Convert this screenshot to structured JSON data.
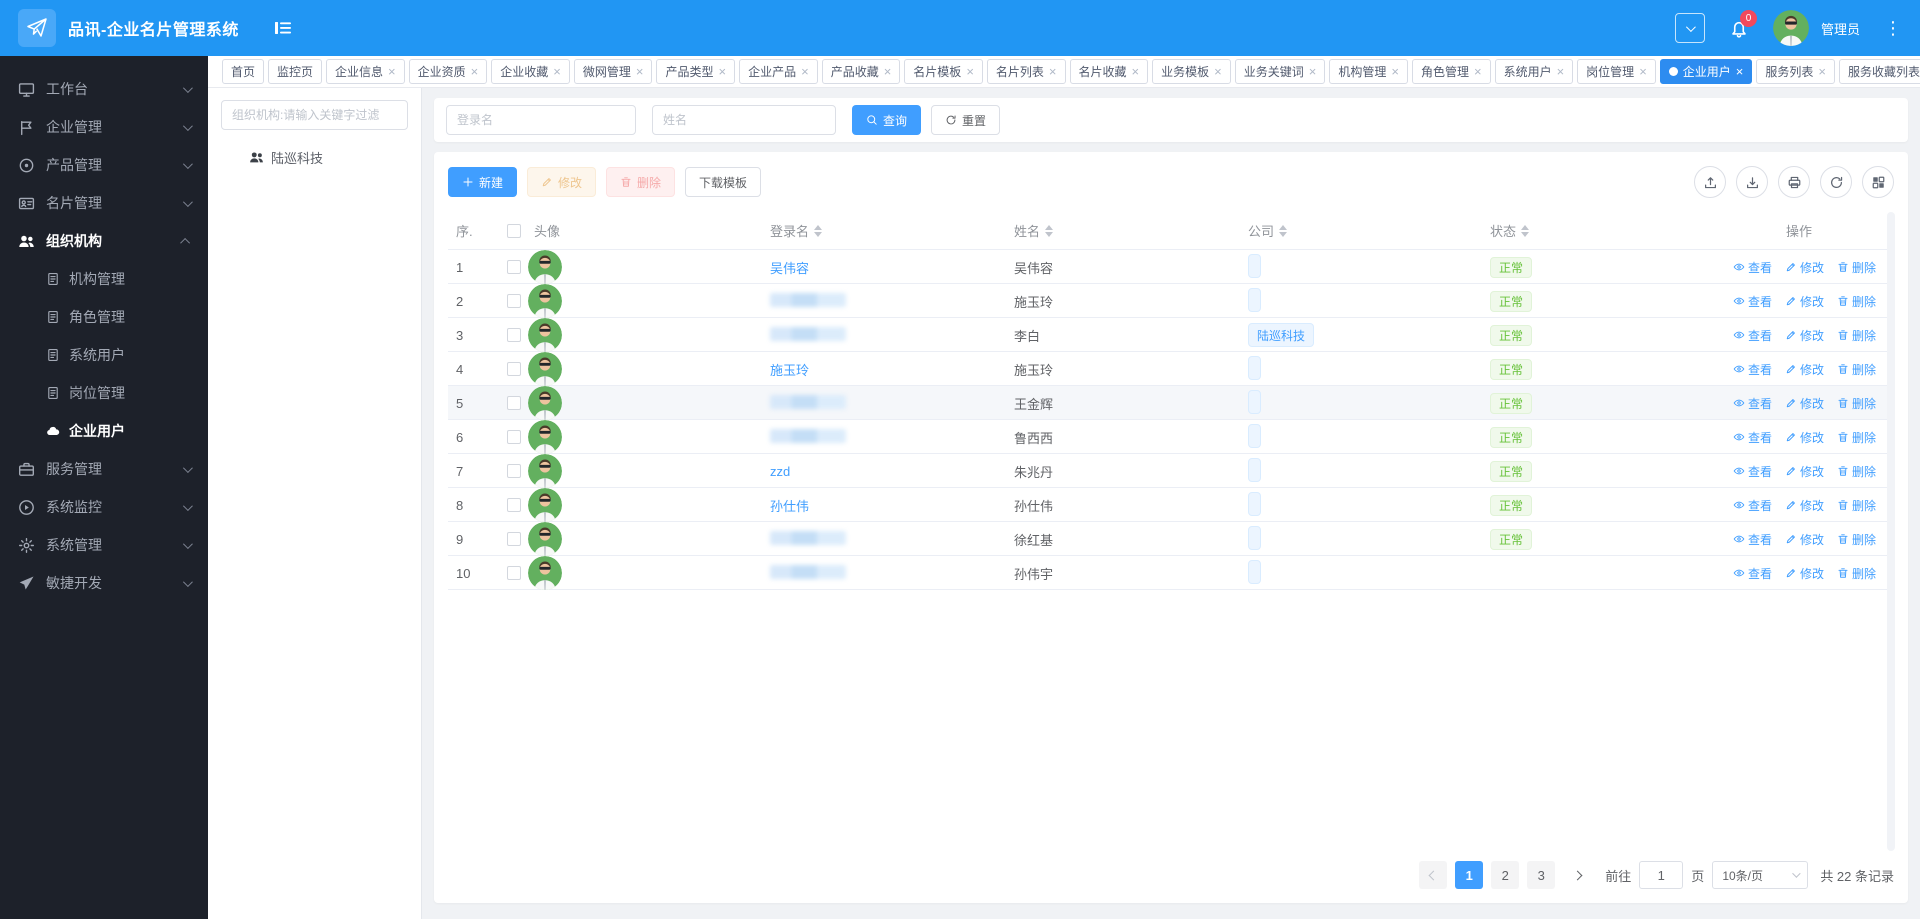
{
  "header": {
    "title": "品讯-企业名片管理系统",
    "user_name": "管理员",
    "notification_badge": "0"
  },
  "tabs": [
    {
      "label": "首页",
      "closable": false
    },
    {
      "label": "监控页",
      "closable": false
    },
    {
      "label": "企业信息",
      "closable": true
    },
    {
      "label": "企业资质",
      "closable": true
    },
    {
      "label": "企业收藏",
      "closable": true
    },
    {
      "label": "微网管理",
      "closable": true
    },
    {
      "label": "产品类型",
      "closable": true
    },
    {
      "label": "企业产品",
      "closable": true
    },
    {
      "label": "产品收藏",
      "closable": true
    },
    {
      "label": "名片模板",
      "closable": true
    },
    {
      "label": "名片列表",
      "closable": true
    },
    {
      "label": "名片收藏",
      "closable": true
    },
    {
      "label": "业务模板",
      "closable": true
    },
    {
      "label": "业务关键词",
      "closable": true
    },
    {
      "label": "机构管理",
      "closable": true
    },
    {
      "label": "角色管理",
      "closable": true
    },
    {
      "label": "系统用户",
      "closable": true
    },
    {
      "label": "岗位管理",
      "closable": true
    },
    {
      "label": "企业用户",
      "closable": true,
      "active": true
    },
    {
      "label": "服务列表",
      "closable": true
    },
    {
      "label": "服务收藏列表",
      "closable": true
    }
  ],
  "sidebar": {
    "items": [
      {
        "label": "工作台",
        "icon": "monitor"
      },
      {
        "label": "企业管理",
        "icon": "flag"
      },
      {
        "label": "产品管理",
        "icon": "target"
      },
      {
        "label": "名片管理",
        "icon": "id-card"
      },
      {
        "label": "组织机构",
        "icon": "users",
        "expanded": true,
        "children": [
          {
            "label": "机构管理",
            "icon": "doc"
          },
          {
            "label": "角色管理",
            "icon": "doc"
          },
          {
            "label": "系统用户",
            "icon": "doc"
          },
          {
            "label": "岗位管理",
            "icon": "doc"
          },
          {
            "label": "企业用户",
            "icon": "cloud",
            "active": true
          }
        ]
      },
      {
        "label": "服务管理",
        "icon": "briefcase"
      },
      {
        "label": "系统监控",
        "icon": "play-circle"
      },
      {
        "label": "系统管理",
        "icon": "gear"
      },
      {
        "label": "敏捷开发",
        "icon": "send"
      }
    ]
  },
  "org_panel": {
    "filter_placeholder": "组织机构:请输入关键字过滤",
    "nodes": [
      {
        "label": "陆巡科技",
        "icon": "users"
      }
    ]
  },
  "filters": {
    "login_placeholder": "登录名",
    "name_placeholder": "姓名",
    "search_label": "查询",
    "reset_label": "重置"
  },
  "toolbar": {
    "create": "新建",
    "edit": "修改",
    "delete": "删除",
    "download_template": "下载模板"
  },
  "table": {
    "columns": {
      "index": "序.",
      "avatar": "头像",
      "login": "登录名",
      "name": "姓名",
      "company": "公司",
      "status": "状态",
      "actions": "操作"
    },
    "actions": {
      "view": "查看",
      "edit": "修改",
      "delete": "删除"
    },
    "rows": [
      {
        "index": "1",
        "login": "吴伟容",
        "masked": false,
        "name": "吴伟容",
        "company": "",
        "status": "正常"
      },
      {
        "index": "2",
        "login": "",
        "masked": true,
        "name": "施玉玲",
        "company": "",
        "status": "正常"
      },
      {
        "index": "3",
        "login": "",
        "masked": true,
        "name": "李白",
        "company": "陆巡科技",
        "status": "正常"
      },
      {
        "index": "4",
        "login": "施玉玲",
        "masked": false,
        "name": "施玉玲",
        "company": "",
        "status": "正常"
      },
      {
        "index": "5",
        "login": "",
        "masked": true,
        "name": "王金辉",
        "company": "",
        "status": "正常",
        "highlighted": true
      },
      {
        "index": "6",
        "login": "",
        "masked": true,
        "name": "鲁西西",
        "company": "",
        "status": "正常"
      },
      {
        "index": "7",
        "login": "zzd",
        "masked": false,
        "name": "朱兆丹",
        "company": "",
        "status": "正常"
      },
      {
        "index": "8",
        "login": "孙仕伟",
        "masked": false,
        "name": "孙仕伟",
        "company": "",
        "status": "正常"
      },
      {
        "index": "9",
        "login": "",
        "masked": true,
        "name": "徐红基",
        "company": "",
        "status": "正常"
      },
      {
        "index": "10",
        "login": "",
        "masked": true,
        "name": "孙伟宇",
        "company": "",
        "status": ""
      }
    ]
  },
  "pagination": {
    "pages": [
      "1",
      "2",
      "3"
    ],
    "current": "1",
    "goto_label": "前往",
    "goto_value": "1",
    "page_unit": "页",
    "page_size": "10条/页",
    "total": "共 22 条记录"
  },
  "colors": {
    "header_blue": "#2196f3",
    "primary": "#409eff",
    "tab_active": "#2d8cf0",
    "success": "#67c23a",
    "sidebar_bg": "#1d212a",
    "main_bg": "#f0f2f5"
  }
}
